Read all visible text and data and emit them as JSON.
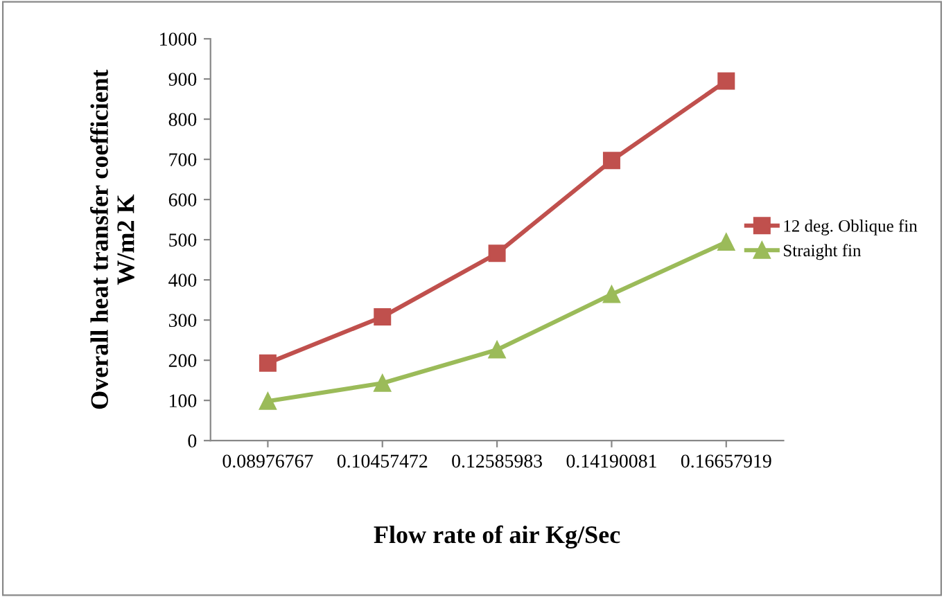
{
  "chart_data": {
    "type": "line",
    "xlabel": "Flow rate of air Kg/Sec",
    "ylabel": "Overall heat transfer coefficient\nW/m2 K",
    "categories": [
      "0.08976767",
      "0.10457472",
      "0.12585983",
      "0.14190081",
      "0.16657919"
    ],
    "series": [
      {
        "name": "12 deg. Oblique fin",
        "color": "#c0504d",
        "marker": "square",
        "values": [
          193,
          308,
          466,
          697,
          895
        ]
      },
      {
        "name": "Straight fin",
        "color": "#9bbb59",
        "marker": "triangle",
        "values": [
          98,
          143,
          226,
          364,
          494
        ]
      }
    ],
    "ylim": [
      0,
      1000
    ],
    "yticks": [
      0,
      100,
      200,
      300,
      400,
      500,
      600,
      700,
      800,
      900,
      1000
    ],
    "grid": false,
    "legend": "right",
    "line_style": "solid"
  }
}
